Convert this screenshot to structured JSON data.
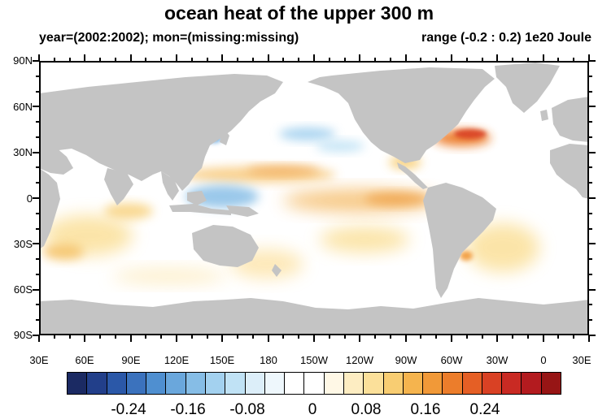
{
  "title": "ocean heat of the upper 300 m",
  "subtitle_left": "year=(2002:2002); mon=(missing:missing)",
  "subtitle_right": "range (-0.2 : 0.2) 1e20 Joule",
  "y_axis": {
    "labels": [
      "90N",
      "60N",
      "30N",
      "0",
      "30S",
      "60S",
      "90S"
    ]
  },
  "x_axis": {
    "labels": [
      "30E",
      "60E",
      "90E",
      "120E",
      "150E",
      "180",
      "150W",
      "120W",
      "90W",
      "60W",
      "30W",
      "0",
      "30E"
    ]
  },
  "colorbar": {
    "colors": [
      "#1b2a63",
      "#223f8a",
      "#2b58a8",
      "#3b72bd",
      "#4f8fd0",
      "#6aa7dc",
      "#86bde6",
      "#a3d1ef",
      "#c0e2f5",
      "#dceef9",
      "#eef7fc",
      "#ffffff",
      "#ffffff",
      "#fff8e6",
      "#fdedc2",
      "#fbe09a",
      "#f8cd72",
      "#f5b44e",
      "#f19938",
      "#ec7d2b",
      "#e55f25",
      "#d94124",
      "#c92a23",
      "#b31b1f",
      "#971515"
    ],
    "labels": [
      "-0.24",
      "-0.16",
      "-0.08",
      "0",
      "0.08",
      "0.16",
      "0.24"
    ]
  },
  "colors": {
    "land": "#c4c4c4",
    "ocean": "#ffffff"
  }
}
